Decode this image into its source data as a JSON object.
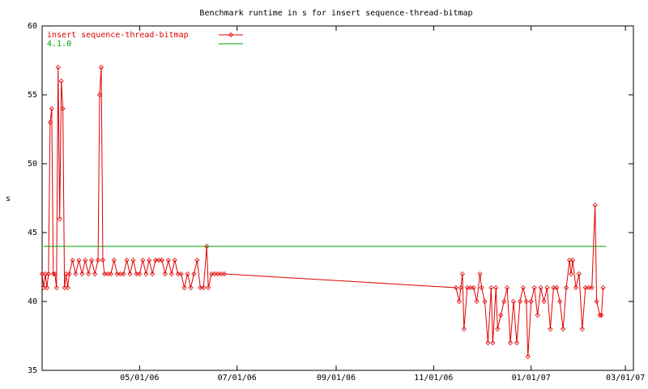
{
  "chart_data": {
    "type": "line",
    "title": "Benchmark runtime in s for insert sequence-thread-bitmap",
    "y_label": "s",
    "xlim": [
      "2006-03-01",
      "2007-03-06"
    ],
    "xticks": [
      {
        "value": "2006-05-01",
        "label": "05/01/06"
      },
      {
        "value": "2006-07-01",
        "label": "07/01/06"
      },
      {
        "value": "2006-09-01",
        "label": "09/01/06"
      },
      {
        "value": "2006-11-01",
        "label": "11/01/06"
      },
      {
        "value": "2007-01-01",
        "label": "01/01/07"
      },
      {
        "value": "2007-03-01",
        "label": "03/01/07"
      }
    ],
    "ylim": [
      35,
      60
    ],
    "yticks": [
      35,
      40,
      45,
      50,
      55,
      60
    ],
    "legend": "top-left",
    "series": [
      {
        "name": "insert sequence-thread-bitmap",
        "color": "#e00000",
        "markers": true,
        "x": [
          "2006-03-01",
          "2006-03-02",
          "2006-03-03",
          "2006-03-04",
          "2006-03-05",
          "2006-03-06",
          "2006-03-07",
          "2006-03-08",
          "2006-03-09",
          "2006-03-10",
          "2006-03-11",
          "2006-03-12",
          "2006-03-13",
          "2006-03-14",
          "2006-03-15",
          "2006-03-16",
          "2006-03-17",
          "2006-03-18",
          "2006-03-20",
          "2006-03-22",
          "2006-03-24",
          "2006-03-26",
          "2006-03-28",
          "2006-03-30",
          "2006-04-01",
          "2006-04-03",
          "2006-04-05",
          "2006-04-06",
          "2006-04-07",
          "2006-04-08",
          "2006-04-09",
          "2006-04-11",
          "2006-04-13",
          "2006-04-15",
          "2006-04-17",
          "2006-04-19",
          "2006-04-21",
          "2006-04-23",
          "2006-04-25",
          "2006-04-27",
          "2006-04-29",
          "2006-05-01",
          "2006-05-03",
          "2006-05-05",
          "2006-05-07",
          "2006-05-09",
          "2006-05-11",
          "2006-05-13",
          "2006-05-15",
          "2006-05-17",
          "2006-05-19",
          "2006-05-21",
          "2006-05-23",
          "2006-05-25",
          "2006-05-27",
          "2006-05-29",
          "2006-05-31",
          "2006-06-02",
          "2006-06-04",
          "2006-06-06",
          "2006-06-08",
          "2006-06-10",
          "2006-06-12",
          "2006-06-13",
          "2006-06-15",
          "2006-06-17",
          "2006-06-19",
          "2006-06-21",
          "2006-06-23",
          "2006-11-15",
          "2006-11-17",
          "2006-11-18",
          "2006-11-19",
          "2006-11-20",
          "2006-11-22",
          "2006-11-24",
          "2006-11-26",
          "2006-11-28",
          "2006-11-30",
          "2006-12-01",
          "2006-12-03",
          "2006-12-05",
          "2006-12-07",
          "2006-12-08",
          "2006-12-10",
          "2006-12-11",
          "2006-12-13",
          "2006-12-15",
          "2006-12-17",
          "2006-12-19",
          "2006-12-21",
          "2006-12-23",
          "2006-12-25",
          "2006-12-27",
          "2006-12-29",
          "2006-12-30",
          "2007-01-01",
          "2007-01-03",
          "2007-01-05",
          "2007-01-07",
          "2007-01-09",
          "2007-01-11",
          "2007-01-13",
          "2007-01-15",
          "2007-01-17",
          "2007-01-19",
          "2007-01-21",
          "2007-01-23",
          "2007-01-25",
          "2007-01-26",
          "2007-01-27",
          "2007-01-29",
          "2007-01-31",
          "2007-02-02",
          "2007-02-04",
          "2007-02-06",
          "2007-02-08",
          "2007-02-10",
          "2007-02-11",
          "2007-02-13",
          "2007-02-14",
          "2007-02-15"
        ],
        "values": [
          42,
          41,
          42,
          41,
          42,
          53,
          54,
          42,
          42,
          41,
          57,
          46,
          56,
          54,
          41,
          42,
          41,
          42,
          43,
          42,
          43,
          42,
          43,
          42,
          43,
          42,
          43,
          55,
          57,
          43,
          42,
          42,
          42,
          43,
          42,
          42,
          42,
          43,
          42,
          43,
          42,
          42,
          43,
          42,
          43,
          42,
          43,
          43,
          43,
          42,
          43,
          42,
          43,
          42,
          42,
          41,
          42,
          41,
          42,
          43,
          41,
          41,
          44,
          41,
          42,
          42,
          42,
          42,
          42,
          41,
          40,
          41,
          42,
          38,
          41,
          41,
          41,
          40,
          42,
          41,
          40,
          37,
          41,
          37,
          41,
          38,
          39,
          40,
          41,
          37,
          40,
          37,
          40,
          41,
          40,
          36,
          40,
          41,
          39,
          41,
          40,
          41,
          38,
          41,
          41,
          40,
          38,
          41,
          43,
          42,
          43,
          41,
          42,
          38,
          41,
          41,
          41,
          47,
          40,
          39,
          39,
          41
        ]
      },
      {
        "name": "4.1.0",
        "color": "#00a000",
        "markers": false,
        "x": [
          "2006-03-02",
          "2007-02-17"
        ],
        "values": [
          44,
          44
        ]
      }
    ]
  }
}
